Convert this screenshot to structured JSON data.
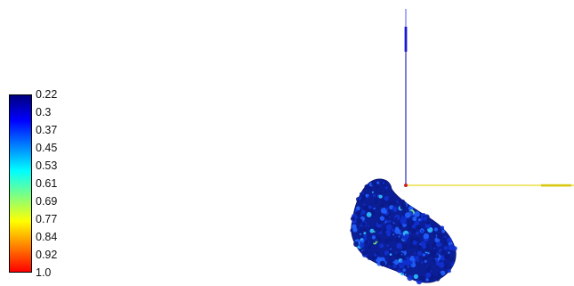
{
  "colorbar": {
    "ticks": [
      "0.22",
      "0.3",
      "0.37",
      "0.45",
      "0.53",
      "0.61",
      "0.69",
      "0.77",
      "0.84",
      "0.92",
      "1.0"
    ],
    "colormap": "jet",
    "gradient_stops": [
      "#00007f",
      "#0000ff",
      "#0080ff",
      "#00ffff",
      "#80ff80",
      "#ffff00",
      "#ff8000",
      "#ff0000"
    ]
  },
  "axes": {
    "vertical_axis_color": "#2020c0",
    "horizontal_axis_color": "#f0e020",
    "origin_color": "#cc2020"
  },
  "model": {
    "description_colors": [
      "#0a1a8a",
      "#1030d0",
      "#2060ff",
      "#30c0ff",
      "#80ff80"
    ]
  }
}
